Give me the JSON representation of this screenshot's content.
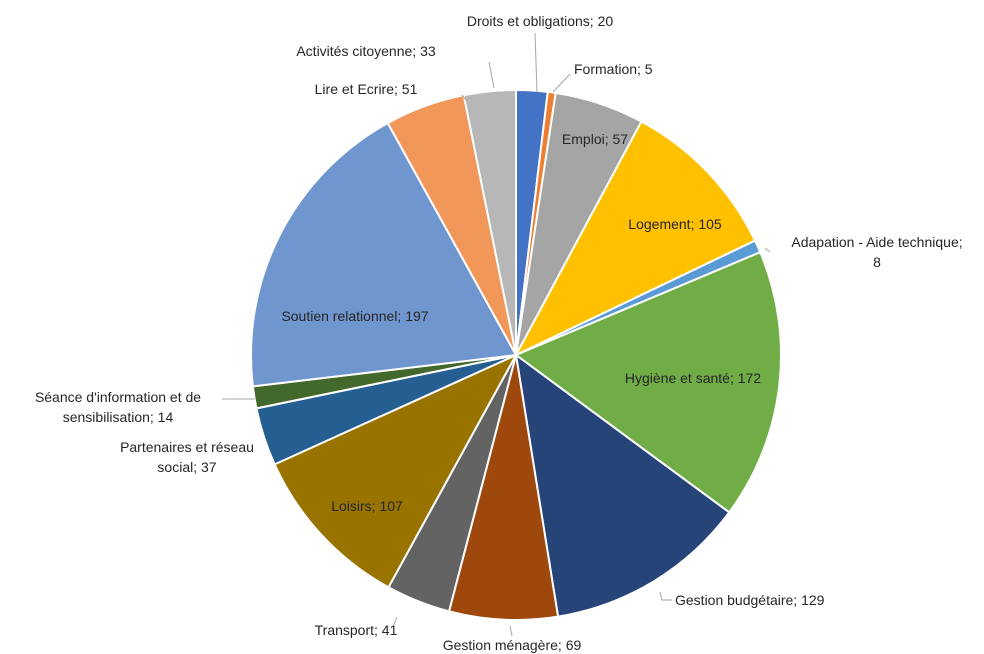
{
  "chart_data": {
    "type": "pie",
    "title": "",
    "slices": [
      {
        "label": "Droits et obligations",
        "value": 20,
        "text": [
          "Droits et obligations; 20"
        ],
        "color": "#4472C4"
      },
      {
        "label": "Formation",
        "value": 5,
        "text": [
          "Formation; 5"
        ],
        "color": "#ED7D31"
      },
      {
        "label": "Emploi",
        "value": 57,
        "text": [
          "Emploi; 57"
        ],
        "color": "#A5A5A5"
      },
      {
        "label": "Logement",
        "value": 105,
        "text": [
          "Logement; 105"
        ],
        "color": "#FFC000"
      },
      {
        "label": "Adapation - Aide technique",
        "value": 8,
        "text": [
          "Adapation - Aide technique;",
          "8"
        ],
        "color": "#5B9BD5"
      },
      {
        "label": "Hygiène et santé",
        "value": 172,
        "text": [
          "Hygiène et santé; 172"
        ],
        "color": "#70AD47"
      },
      {
        "label": "Gestion budgétaire",
        "value": 129,
        "text": [
          "Gestion budgétaire; 129"
        ],
        "color": "#264478"
      },
      {
        "label": "Gestion ménagère",
        "value": 69,
        "text": [
          "Gestion ménagère; 69"
        ],
        "color": "#9E480E"
      },
      {
        "label": "Transport",
        "value": 41,
        "text": [
          "Transport; 41"
        ],
        "color": "#636363"
      },
      {
        "label": "Loisirs",
        "value": 107,
        "text": [
          "Loisirs; 107"
        ],
        "color": "#997300"
      },
      {
        "label": "Partenaires et réseau social",
        "value": 37,
        "text": [
          "Partenaires et réseau",
          "social; 37"
        ],
        "color": "#255E91"
      },
      {
        "label": "Séance d'information et de sensibilisation",
        "value": 14,
        "text": [
          "Séance d'information et de",
          "sensibilisation; 14"
        ],
        "color": "#43682B"
      },
      {
        "label": "Soutien relationnel",
        "value": 197,
        "text": [
          "Soutien relationnel; 197"
        ],
        "color": "#7096CF"
      },
      {
        "label": "Lire et Ecrire",
        "value": 51,
        "text": [
          "Lire et Ecrire; 51"
        ],
        "color": "#F1975A"
      },
      {
        "label": "Activités citoyenne",
        "value": 33,
        "text": [
          "Activités citoyenne; 33"
        ],
        "color": "#B7B7B7"
      }
    ]
  }
}
